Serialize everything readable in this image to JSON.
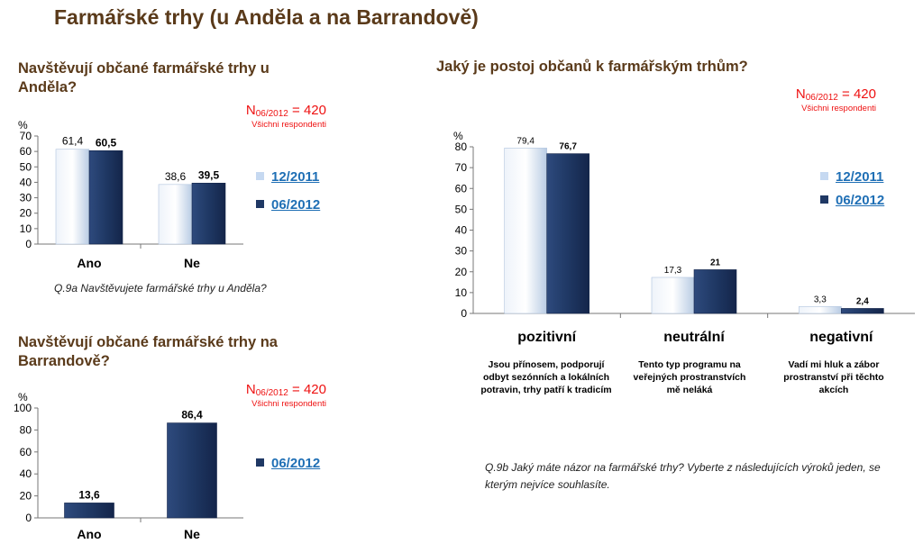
{
  "page_title": "Farmářské trhy (u Anděla a na Barrandově)",
  "colors": {
    "light_bar": "#dce6f2",
    "dark_bar": "#1f3864",
    "accent_red": "#e11111",
    "title_brown": "#5a3a1a",
    "link_blue": "#1f6fb5"
  },
  "chart1": {
    "question_title": "Navštěvují občané farmářské trhy u Anděla?",
    "n_label": "N",
    "n_sub": "06/2012",
    "n_value": " = 420",
    "respondents": "Všichni respondenti",
    "ylabel": "%",
    "legend": [
      "12/2011",
      "06/2012"
    ],
    "note": "Q.9a Navštěvujete farmářské trhy u Anděla?"
  },
  "chart2": {
    "question_title": "Navštěvují občané farmářské trhy na Barrandově?",
    "n_label": "N",
    "n_sub": "06/2012",
    "n_value": " = 420",
    "respondents": "Všichni respondenti",
    "ylabel": "%",
    "legend": [
      "06/2012"
    ]
  },
  "chart3": {
    "question_title": "Jaký je postoj občanů k farmářským trhům?",
    "n_label": "N",
    "n_sub": "06/2012",
    "n_value": " = 420",
    "respondents": "Všichni respondenti",
    "ylabel": "%",
    "legend": [
      "12/2011",
      "06/2012"
    ],
    "descriptions": [
      "Jsou přínosem, podporují odbyt sezónních a lokálních potravin, trhy patří k tradicím",
      "Tento typ programu na veřejných prostranstvích mě neláká",
      "Vadí mi hluk a zábor prostranství při těchto akcích"
    ],
    "note": "Q.9b Jaký máte názor na farmářské trhy? Vyberte z následujících výroků jeden, se kterým nejvíce souhlasíte."
  },
  "chart_data": [
    {
      "type": "bar",
      "categories": [
        "Ano",
        "Ne"
      ],
      "series": [
        {
          "name": "12/2011",
          "values": [
            61.4,
            38.6
          ],
          "labels": [
            "61,4",
            "38,6"
          ]
        },
        {
          "name": "06/2012",
          "values": [
            60.5,
            39.5
          ],
          "labels": [
            "60,5",
            "39,5"
          ]
        }
      ],
      "ylim": [
        0,
        70
      ],
      "yticks": [
        0,
        10,
        20,
        30,
        40,
        50,
        60,
        70
      ],
      "ylabel": "%"
    },
    {
      "type": "bar",
      "categories": [
        "Ano",
        "Ne"
      ],
      "series": [
        {
          "name": "06/2012",
          "values": [
            13.6,
            86.4
          ],
          "labels": [
            "13,6",
            "86,4"
          ]
        }
      ],
      "ylim": [
        0,
        100
      ],
      "yticks": [
        0,
        20,
        40,
        60,
        80,
        100
      ],
      "ylabel": "%"
    },
    {
      "type": "bar",
      "categories": [
        "pozitivní",
        "neutrální",
        "negativní"
      ],
      "series": [
        {
          "name": "12/2011",
          "values": [
            79.4,
            17.3,
            3.3
          ],
          "labels": [
            "79,4",
            "17,3",
            "3,3"
          ]
        },
        {
          "name": "06/2012",
          "values": [
            76.7,
            21,
            2.4
          ],
          "labels": [
            "76,7",
            "21",
            "2,4"
          ]
        }
      ],
      "ylim": [
        0,
        80
      ],
      "yticks": [
        0,
        10,
        20,
        30,
        40,
        50,
        60,
        70,
        80
      ],
      "ylabel": "%"
    }
  ]
}
